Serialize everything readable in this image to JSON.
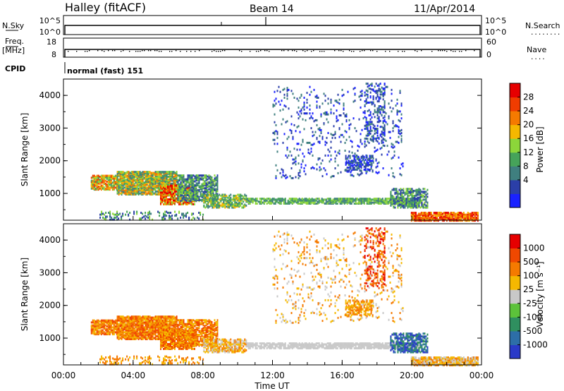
{
  "header": {
    "station": "Halley (fitACF)",
    "beam": "Beam 14",
    "date": "11/Apr/2014"
  },
  "strips": {
    "nsky_label": "N.Sky",
    "nsearch_label": "N.Search",
    "nsearch_dots": "........",
    "noise_ticks": [
      "10^5",
      "10^0"
    ],
    "freq_label": "Freq.",
    "freq_unit": "[MHz]",
    "freq_ticks": [
      "18",
      "8"
    ],
    "nave_label": "Nave",
    "nave_dots": "....",
    "nave_ticks": [
      "60",
      "0"
    ],
    "cpid_label": "CPID",
    "cpid_value": "normal (fast) 151"
  },
  "chart_data": [
    {
      "type": "heatmap",
      "name": "power",
      "ylabel": "Slant Range [km]",
      "xlabel": "",
      "ylim": [
        180,
        4500
      ],
      "yticks": [
        "4000",
        "3000",
        "2000",
        "1000"
      ],
      "colorbar_label": "Power [dB]",
      "colorbar_ticks": [
        "28",
        "24",
        "20",
        "16",
        "12",
        "8",
        "4"
      ],
      "colors": [
        "#1a22ff",
        "#2b3fa8",
        "#3f7f7f",
        "#46a35a",
        "#8cd63a",
        "#f5b800",
        "#f57a00",
        "#f03c00",
        "#e60000"
      ]
    },
    {
      "type": "heatmap",
      "name": "velocity",
      "ylabel": "Slant Range [km]",
      "xlabel": "Time UT",
      "ylim": [
        180,
        4500
      ],
      "yticks": [
        "4000",
        "3000",
        "2000",
        "1000"
      ],
      "xticks": [
        "00:00",
        "04:00",
        "08:00",
        "12:00",
        "16:00",
        "20:00",
        "00:00"
      ],
      "colorbar_label": "Velocity [m s⁻¹]",
      "colorbar_ticks": [
        "1000",
        "500",
        "100",
        "25",
        "-25",
        "-100",
        "-500",
        "-1000"
      ],
      "colors": [
        "#2a3ac8",
        "#2d6ea8",
        "#2f8f5f",
        "#5cc23a",
        "#c8c8c8",
        "#f5b800",
        "#f57a00",
        "#f04800",
        "#e60000"
      ]
    }
  ]
}
